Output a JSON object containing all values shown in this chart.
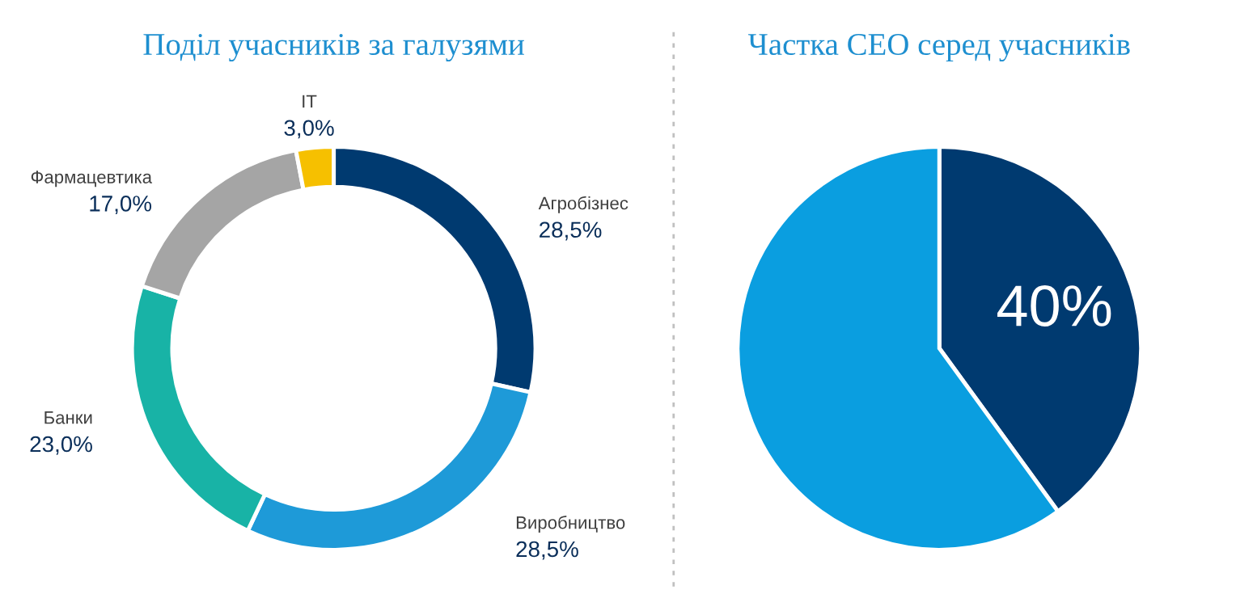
{
  "chart_data": [
    {
      "type": "donut",
      "title": "Поділ учасників за галузями",
      "categories": [
        "Агробізнес",
        "Виробництво",
        "Банки",
        "Фармацевтика",
        "IT"
      ],
      "values": [
        28.5,
        28.5,
        23.0,
        17.0,
        3.0
      ],
      "colors": [
        "#003a70",
        "#1e9ad8",
        "#18b3a6",
        "#a5a5a5",
        "#f6c000"
      ],
      "value_labels": [
        "28,5%",
        "28,5%",
        "23,0%",
        "17,0%",
        "3,0%"
      ]
    },
    {
      "type": "pie",
      "title": "Частка CEO серед учасників",
      "categories": [
        null,
        null
      ],
      "values": [
        40,
        60
      ],
      "colors": [
        "#003a70",
        "#0a9ee0"
      ],
      "value_labels": [
        "40%",
        null
      ]
    }
  ]
}
